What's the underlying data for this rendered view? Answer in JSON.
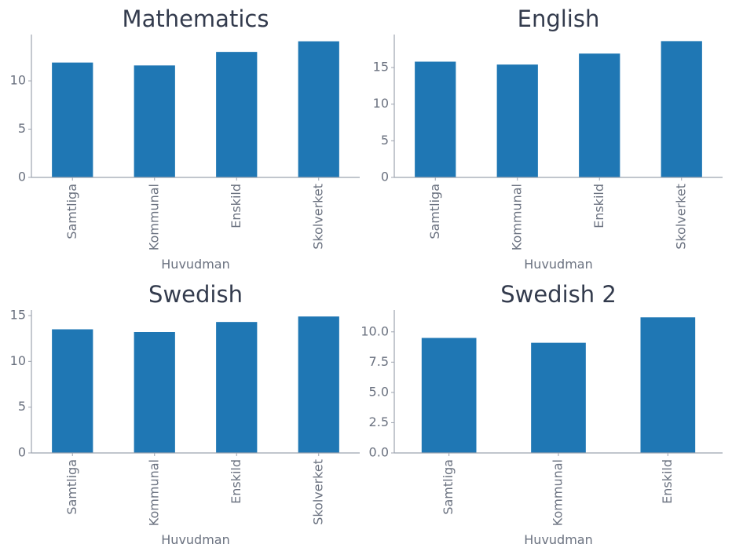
{
  "colors": {
    "bar": "#1f77b4",
    "axis": "#9ca3af",
    "text": "#6b7280",
    "title": "#333b4d"
  },
  "chart_data": [
    {
      "type": "bar",
      "title": "Mathematics",
      "xlabel": "Huvudman",
      "ylabel": "",
      "categories": [
        "Samtliga",
        "Kommunal",
        "Enskild",
        "Skolverket"
      ],
      "values": [
        11.9,
        11.6,
        13.0,
        14.1
      ],
      "ylim": [
        0,
        14.8
      ],
      "yticks": [
        0,
        5,
        10
      ],
      "ytick_labels": [
        "0",
        "5",
        "10"
      ],
      "grid": false
    },
    {
      "type": "bar",
      "title": "English",
      "xlabel": "Huvudman",
      "ylabel": "",
      "categories": [
        "Samtliga",
        "Kommunal",
        "Enskild",
        "Skolverket"
      ],
      "values": [
        15.8,
        15.4,
        16.9,
        18.6
      ],
      "ylim": [
        0,
        19.5
      ],
      "yticks": [
        0,
        5,
        10,
        15
      ],
      "ytick_labels": [
        "0",
        "5",
        "10",
        "15"
      ],
      "grid": false
    },
    {
      "type": "bar",
      "title": "Swedish",
      "xlabel": "Huvudman",
      "ylabel": "",
      "categories": [
        "Samtliga",
        "Kommunal",
        "Enskild",
        "Skolverket"
      ],
      "values": [
        13.5,
        13.2,
        14.3,
        14.9
      ],
      "ylim": [
        0,
        15.6
      ],
      "yticks": [
        0,
        5,
        10,
        15
      ],
      "ytick_labels": [
        "0",
        "5",
        "10",
        "15"
      ],
      "grid": false
    },
    {
      "type": "bar",
      "title": "Swedish 2",
      "xlabel": "Huvudman",
      "ylabel": "",
      "categories": [
        "Samtliga",
        "Kommunal",
        "Enskild"
      ],
      "values": [
        9.5,
        9.1,
        11.2
      ],
      "ylim": [
        0,
        11.8
      ],
      "yticks": [
        0,
        2.5,
        5,
        7.5,
        10
      ],
      "ytick_labels": [
        "0.0",
        "2.5",
        "5.0",
        "7.5",
        "10.0"
      ],
      "grid": false
    }
  ]
}
